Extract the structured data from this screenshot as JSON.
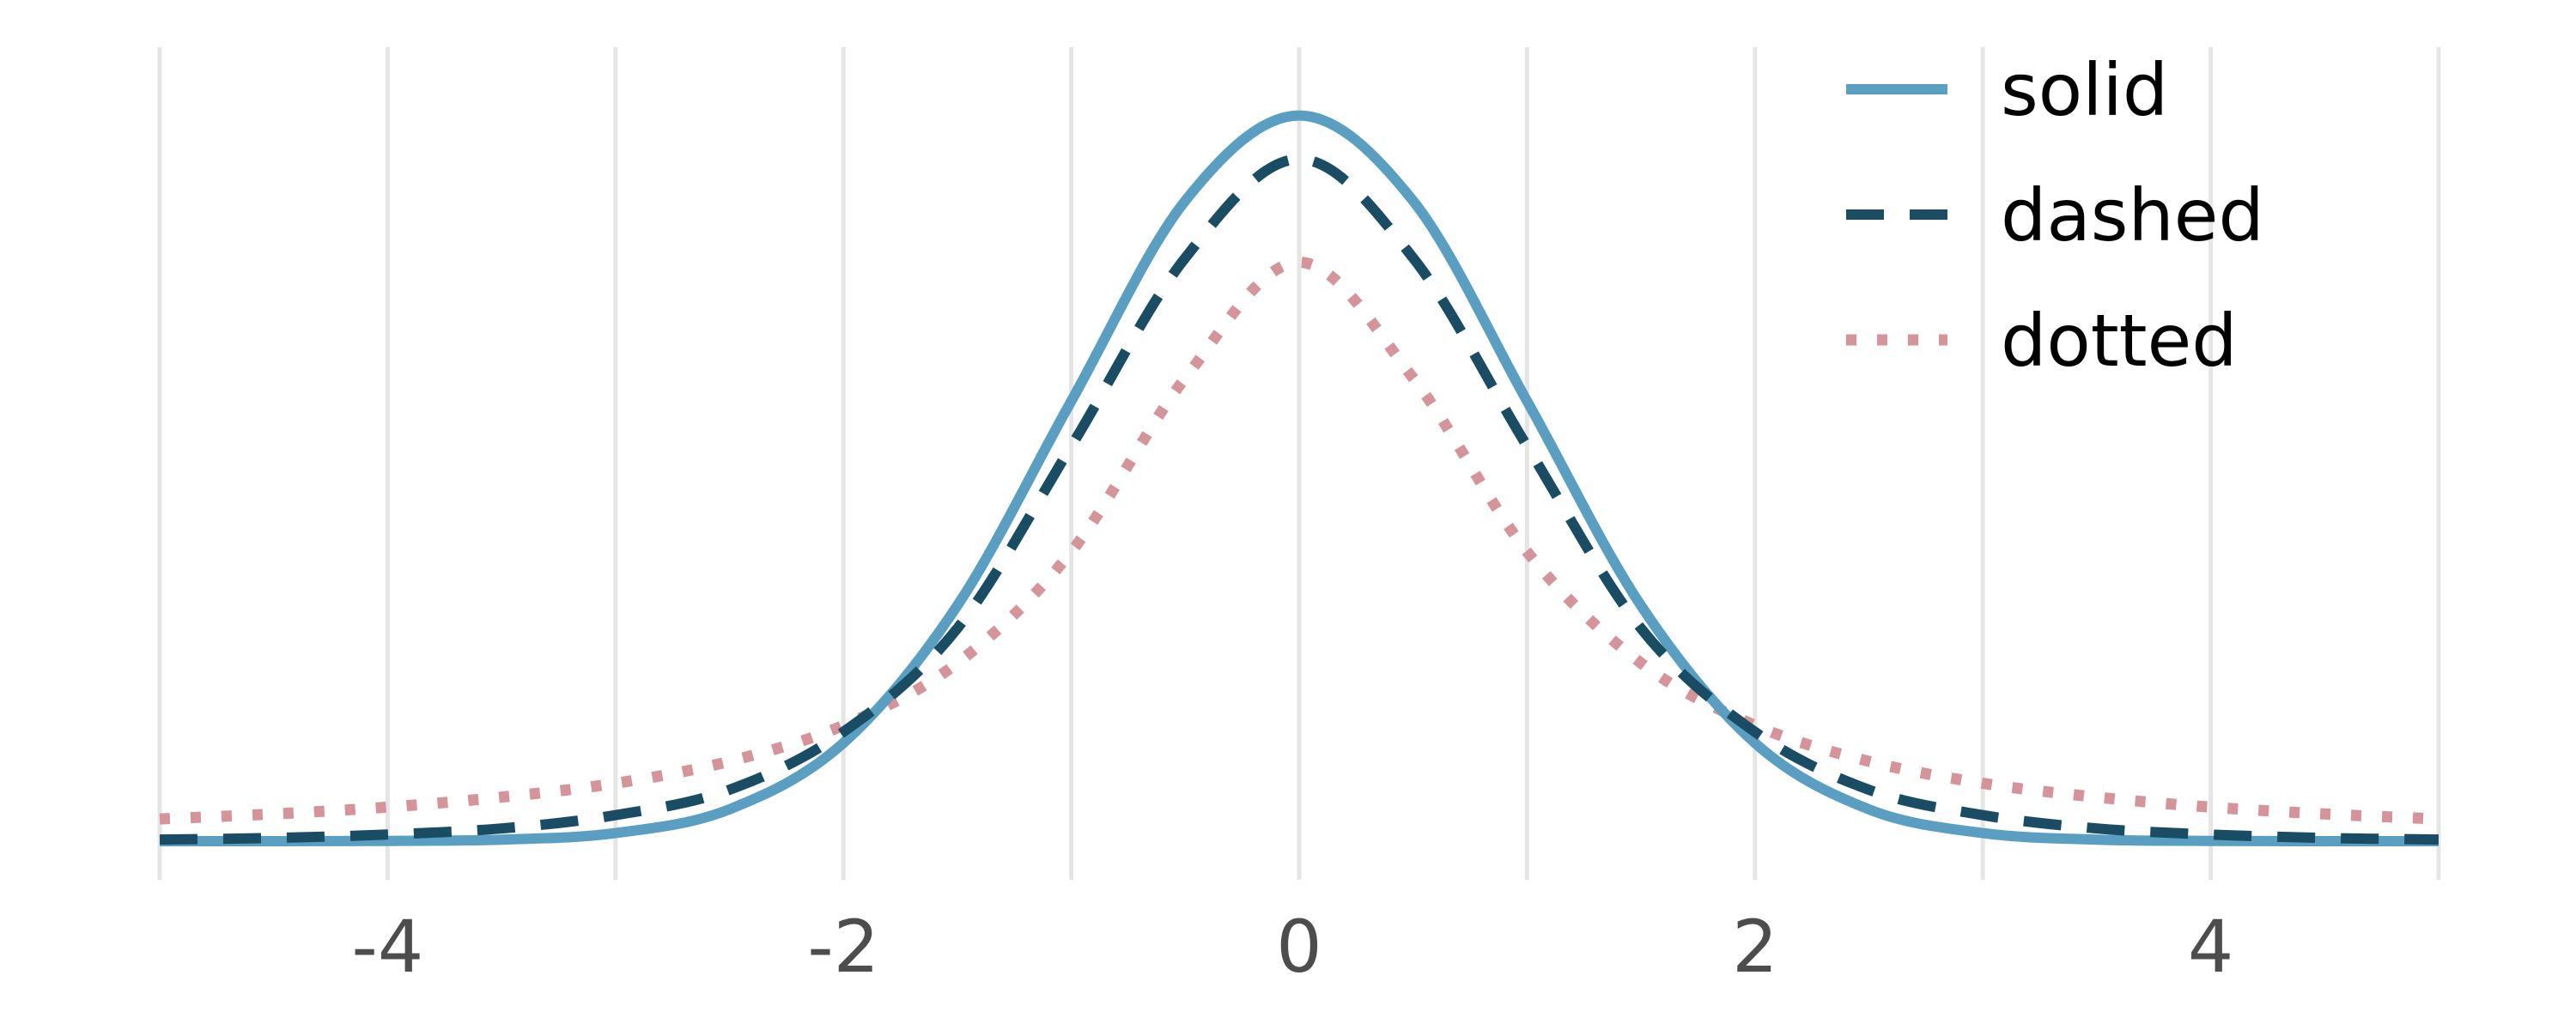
{
  "chart_data": {
    "type": "line",
    "title": "",
    "xlabel": "",
    "ylabel": "",
    "xlim": [
      -5,
      5
    ],
    "ylim": [
      0,
      0.42
    ],
    "x_ticks": [
      -4,
      -2,
      0,
      2,
      4
    ],
    "x_tick_labels": [
      "-4",
      "-2",
      "0",
      "2",
      "4"
    ],
    "grid": "vertical lines at every integer",
    "legend_position": "top-right",
    "series": [
      {
        "name": "solid",
        "line_style": "solid",
        "color": "#5a9ec2",
        "x": [
          -5,
          -4.5,
          -4,
          -3.5,
          -3,
          -2.5,
          -2,
          -1.5,
          -1,
          -0.5,
          0,
          0.5,
          1,
          1.5,
          2,
          2.5,
          3,
          3.5,
          4,
          4.5,
          5
        ],
        "y": [
          1e-06,
          1.6e-05,
          0.000134,
          0.000873,
          0.004432,
          0.017528,
          0.053991,
          0.129518,
          0.241971,
          0.352065,
          0.398942,
          0.352065,
          0.241971,
          0.129518,
          0.053991,
          0.017528,
          0.004432,
          0.000873,
          0.000134,
          1.6e-05,
          1e-06
        ]
      },
      {
        "name": "dashed",
        "line_style": "dashed",
        "color": "#1a4d63",
        "x": [
          -5,
          -4.5,
          -4,
          -3.5,
          -3,
          -2.5,
          -2,
          -1.5,
          -1,
          -0.5,
          0,
          0.5,
          1,
          1.5,
          2,
          2.5,
          3,
          3.5,
          4,
          4.5,
          5
        ],
        "y": [
          0.00088,
          0.0018,
          0.00365,
          0.007,
          0.01431,
          0.02826,
          0.06009,
          0.117,
          0.21715,
          0.32065,
          0.375,
          0.32065,
          0.21715,
          0.117,
          0.06009,
          0.02826,
          0.01431,
          0.007,
          0.00365,
          0.0018,
          0.00088
        ]
      },
      {
        "name": "dotted",
        "line_style": "dotted",
        "color": "#d4949a",
        "x": [
          -5,
          -4.5,
          -4,
          -3.5,
          -3,
          -2.5,
          -2,
          -1.5,
          -1,
          -0.5,
          0,
          0.5,
          1,
          1.5,
          2,
          2.5,
          3,
          3.5,
          4,
          4.5,
          5
        ],
        "y": [
          0.01224,
          0.01494,
          0.01872,
          0.0242,
          0.03183,
          0.0439,
          0.06366,
          0.09794,
          0.15915,
          0.25465,
          0.31831,
          0.25465,
          0.15915,
          0.09794,
          0.06366,
          0.0439,
          0.03183,
          0.0242,
          0.01872,
          0.01494,
          0.01224
        ]
      }
    ]
  }
}
